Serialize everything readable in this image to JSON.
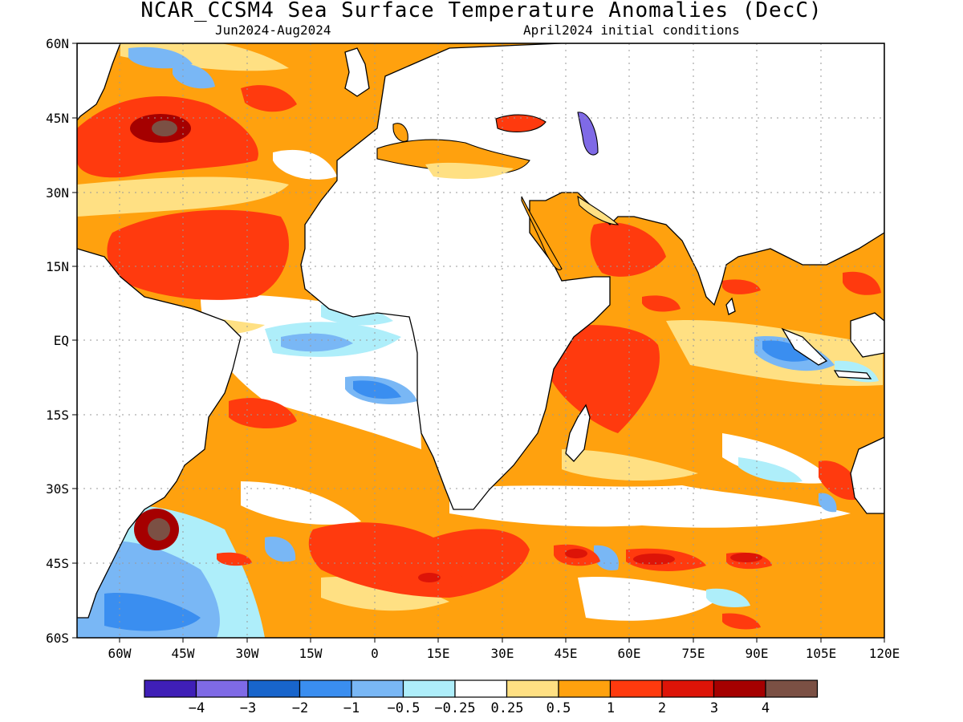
{
  "title": "NCAR_CCSM4 Sea Surface Temperature Anomalies (DecC)",
  "subtitle_left": "Jun2024-Aug2024",
  "subtitle_right": "April2024 initial conditions",
  "map": {
    "lon_range": [
      -70,
      120
    ],
    "lat_range": [
      -60,
      60
    ],
    "grid": true,
    "lat_labels": [
      "60N",
      "45N",
      "30N",
      "15N",
      "EQ",
      "15S",
      "30S",
      "45S",
      "60S"
    ],
    "lon_labels": [
      "60W",
      "45W",
      "30W",
      "15W",
      "0",
      "15E",
      "30E",
      "45E",
      "60E",
      "75E",
      "90E",
      "105E",
      "120E"
    ]
  },
  "colorbar": {
    "colors": [
      "#3f1fb7",
      "#7f6ae6",
      "#1865cc",
      "#3a8ef0",
      "#79b7f5",
      "#aeeefa",
      "#ffffff",
      "#ffe083",
      "#ffa10e",
      "#ff3a0e",
      "#dd1408",
      "#a50000",
      "#7b5044"
    ],
    "labels": [
      "−4",
      "−3",
      "−2",
      "−1",
      "−0.5",
      "−0.25",
      "0.25",
      "0.5",
      "1",
      "2",
      "3",
      "4"
    ]
  }
}
